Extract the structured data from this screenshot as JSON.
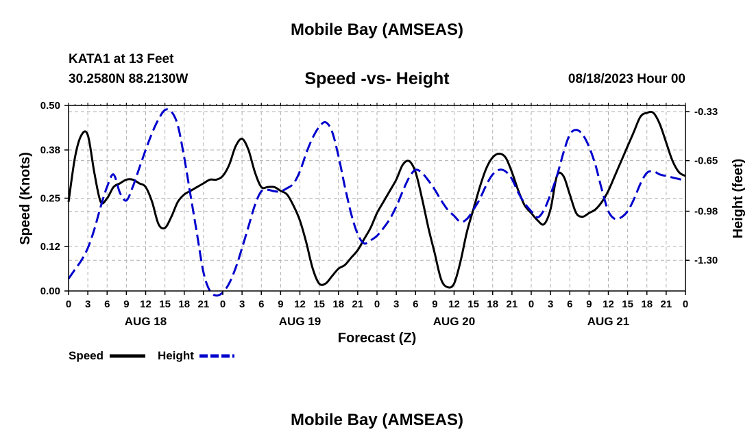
{
  "header": {
    "title": "Mobile Bay (AMSEAS)",
    "station": "KATA1 at 13 Feet",
    "coords": "30.2580N  88.2130W",
    "subtitle": "Speed -vs- Height",
    "run_time": "08/18/2023 Hour 00"
  },
  "footer": {
    "title": "Mobile Bay (AMSEAS)"
  },
  "chart_data": {
    "type": "line",
    "xlabel": "Forecast (Z)",
    "ylabel": "Speed (Knots)",
    "y2label": "Height (feet)",
    "x_range": [
      0,
      96
    ],
    "ylim": [
      0,
      0.5
    ],
    "y2lim": [
      -1.5,
      -0.29
    ],
    "grid": true,
    "legend_position": "bottom-left",
    "x_ticks": [
      0,
      3,
      6,
      9,
      12,
      15,
      18,
      21,
      24,
      27,
      30,
      33,
      36,
      39,
      42,
      45,
      48,
      51,
      54,
      57,
      60,
      63,
      66,
      69,
      72,
      75,
      78,
      81,
      84,
      87,
      90,
      93,
      96
    ],
    "x_tick_labels": [
      "0",
      "3",
      "6",
      "9",
      "12",
      "15",
      "18",
      "21",
      "0",
      "3",
      "6",
      "9",
      "12",
      "15",
      "18",
      "21",
      "0",
      "3",
      "6",
      "9",
      "12",
      "15",
      "18",
      "21",
      "0",
      "3",
      "6",
      "9",
      "12",
      "15",
      "18",
      "21",
      "0"
    ],
    "date_labels": [
      {
        "label": "AUG 18",
        "x": 12
      },
      {
        "label": "AUG 19",
        "x": 36
      },
      {
        "label": "AUG 20",
        "x": 60
      },
      {
        "label": "AUG 21",
        "x": 84
      }
    ],
    "y_ticks": [
      0.0,
      0.12,
      0.25,
      0.38,
      0.5
    ],
    "y_tick_labels": [
      "0.00",
      "0.12",
      "0.25",
      "0.38",
      "0.50"
    ],
    "y2_ticks": [
      -0.33,
      -0.65,
      -0.98,
      -1.3
    ],
    "y2_tick_labels": [
      "-0.33",
      "-0.65",
      "-0.98",
      "-1.30"
    ],
    "series": [
      {
        "name": "Speed",
        "axis": "left",
        "color": "#000000",
        "dash": "solid",
        "x": [
          0,
          1,
          2,
          3,
          4,
          5,
          6,
          7,
          8,
          9,
          10,
          11,
          12,
          13,
          14,
          15,
          16,
          17,
          18,
          19,
          20,
          21,
          22,
          23,
          24,
          25,
          26,
          27,
          28,
          29,
          30,
          31,
          32,
          33,
          34,
          35,
          36,
          37,
          38,
          39,
          40,
          41,
          42,
          43,
          44,
          45,
          46,
          47,
          48,
          49,
          50,
          51,
          52,
          53,
          54,
          55,
          56,
          57,
          58,
          59,
          60,
          61,
          62,
          63,
          64,
          65,
          66,
          67,
          68,
          69,
          70,
          71,
          72,
          73,
          74,
          75,
          76,
          77,
          78,
          79,
          80,
          81,
          82,
          83,
          84,
          85,
          86,
          87,
          88,
          89,
          90,
          91,
          92,
          93,
          94,
          95,
          96
        ],
        "values": [
          0.24,
          0.36,
          0.42,
          0.42,
          0.32,
          0.24,
          0.25,
          0.28,
          0.29,
          0.3,
          0.3,
          0.29,
          0.28,
          0.24,
          0.18,
          0.17,
          0.2,
          0.24,
          0.26,
          0.27,
          0.28,
          0.29,
          0.3,
          0.3,
          0.31,
          0.34,
          0.39,
          0.41,
          0.38,
          0.32,
          0.28,
          0.28,
          0.28,
          0.27,
          0.26,
          0.23,
          0.19,
          0.13,
          0.06,
          0.02,
          0.02,
          0.04,
          0.06,
          0.07,
          0.09,
          0.11,
          0.14,
          0.17,
          0.21,
          0.24,
          0.27,
          0.3,
          0.34,
          0.35,
          0.32,
          0.25,
          0.17,
          0.1,
          0.03,
          0.01,
          0.02,
          0.08,
          0.16,
          0.22,
          0.28,
          0.33,
          0.36,
          0.37,
          0.36,
          0.32,
          0.27,
          0.23,
          0.21,
          0.19,
          0.18,
          0.22,
          0.31,
          0.31,
          0.26,
          0.21,
          0.2,
          0.21,
          0.22,
          0.24,
          0.27,
          0.31,
          0.35,
          0.39,
          0.43,
          0.47,
          0.48,
          0.48,
          0.45,
          0.4,
          0.35,
          0.32,
          0.31
        ]
      },
      {
        "name": "Height",
        "axis": "right",
        "color": "#0000cc",
        "dash": "dashed",
        "x": [
          0,
          1,
          2,
          3,
          4,
          5,
          6,
          7,
          8,
          9,
          10,
          11,
          12,
          13,
          14,
          15,
          16,
          17,
          18,
          19,
          20,
          21,
          22,
          23,
          24,
          25,
          26,
          27,
          28,
          29,
          30,
          31,
          32,
          33,
          34,
          35,
          36,
          37,
          38,
          39,
          40,
          41,
          42,
          43,
          44,
          45,
          46,
          47,
          48,
          49,
          50,
          51,
          52,
          53,
          54,
          55,
          56,
          57,
          58,
          59,
          60,
          61,
          62,
          63,
          64,
          65,
          66,
          67,
          68,
          69,
          70,
          71,
          72,
          73,
          74,
          75,
          76,
          77,
          78,
          79,
          80,
          81,
          82,
          83,
          84,
          85,
          86,
          87,
          88,
          89,
          90,
          91,
          92,
          93,
          94,
          95,
          96
        ],
        "values": [
          -1.42,
          -1.36,
          -1.3,
          -1.22,
          -1.1,
          -0.95,
          -0.82,
          -0.74,
          -0.86,
          -0.91,
          -0.82,
          -0.7,
          -0.58,
          -0.47,
          -0.38,
          -0.32,
          -0.33,
          -0.42,
          -0.63,
          -0.88,
          -1.13,
          -1.38,
          -1.5,
          -1.53,
          -1.51,
          -1.45,
          -1.35,
          -1.22,
          -1.08,
          -0.94,
          -0.85,
          -0.84,
          -0.85,
          -0.85,
          -0.83,
          -0.8,
          -0.72,
          -0.6,
          -0.5,
          -0.43,
          -0.4,
          -0.46,
          -0.62,
          -0.82,
          -1.0,
          -1.13,
          -1.19,
          -1.17,
          -1.14,
          -1.09,
          -1.03,
          -0.95,
          -0.85,
          -0.76,
          -0.71,
          -0.73,
          -0.78,
          -0.84,
          -0.91,
          -0.97,
          -1.01,
          -1.05,
          -1.03,
          -0.97,
          -0.9,
          -0.81,
          -0.74,
          -0.71,
          -0.72,
          -0.77,
          -0.86,
          -0.93,
          -0.98,
          -1.02,
          -0.97,
          -0.87,
          -0.75,
          -0.6,
          -0.48,
          -0.45,
          -0.48,
          -0.56,
          -0.68,
          -0.84,
          -0.98,
          -1.03,
          -1.02,
          -0.98,
          -0.9,
          -0.8,
          -0.73,
          -0.72,
          -0.74,
          -0.75,
          -0.76,
          -0.77,
          -0.78
        ]
      }
    ]
  }
}
